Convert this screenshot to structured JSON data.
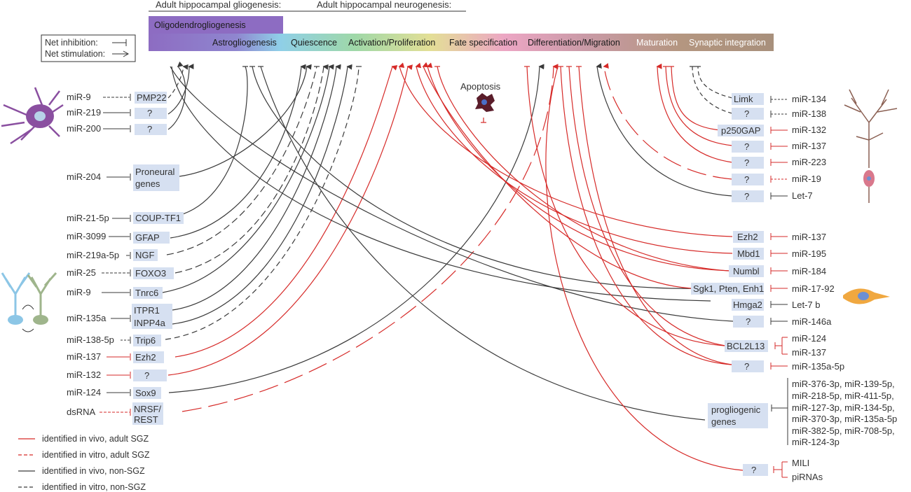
{
  "headers": {
    "gliogenesis": "Adult hippocampal gliogenesis:",
    "neurogenesis": "Adult hippocampal neurogenesis:"
  },
  "stages": {
    "oligodendrogliogenesis": "Oligodendrogliogenesis",
    "astrogliogenesis": "Astrogliogenesis",
    "quiescence": "Quiescence",
    "activation": "Activation/Proliferation",
    "fate": "Fate specification",
    "differentiation": "Differentiation/Migration",
    "maturation": "Maturation",
    "synaptic": "Synaptic integration"
  },
  "net_legend": {
    "inhibition": "Net inhibition:",
    "stimulation": "Net stimulation:"
  },
  "apoptosis": "Apoptosis",
  "left_rows": [
    {
      "mirna": "miR-9",
      "target": "PMP22"
    },
    {
      "mirna": "miR-219",
      "target": "?"
    },
    {
      "mirna": "miR-200",
      "target": "?"
    },
    {
      "mirna": "miR-204",
      "target": "Proneural",
      "target2": "genes"
    },
    {
      "mirna": "miR-21-5p",
      "target": "COUP-TF1"
    },
    {
      "mirna": "miR-3099",
      "target": "GFAP"
    },
    {
      "mirna": "miR-219a-5p",
      "target": "NGF"
    },
    {
      "mirna": "miR-25",
      "target": "FOXO3"
    },
    {
      "mirna": "miR-9",
      "target": "Tnrc6"
    },
    {
      "mirna": "miR-135a",
      "target": "ITPR1",
      "target2": "INPP4a"
    },
    {
      "mirna": "miR-138-5p",
      "target": "Trip6"
    },
    {
      "mirna": "miR-137",
      "target": "Ezh2"
    },
    {
      "mirna": "miR-132",
      "target": "?"
    },
    {
      "mirna": "miR-124",
      "target": "Sox9"
    },
    {
      "mirna": "dsRNA",
      "target": "NRSF/",
      "target2": "REST"
    }
  ],
  "right_rows": [
    {
      "target": "Limk",
      "mirna": "miR-134"
    },
    {
      "target": "?",
      "mirna": "miR-138"
    },
    {
      "target": "p250GAP",
      "mirna": "miR-132"
    },
    {
      "target": "?",
      "mirna": "miR-137"
    },
    {
      "target": "?",
      "mirna": "miR-223"
    },
    {
      "target": "?",
      "mirna": "miR-19"
    },
    {
      "target": "?",
      "mirna": "Let-7"
    },
    {
      "target": "Ezh2",
      "mirna": "miR-137"
    },
    {
      "target": "Mbd1",
      "mirna": "miR-195"
    },
    {
      "target": "Numbl",
      "mirna": "miR-184"
    },
    {
      "target": "Sgk1, Pten, Enh1",
      "mirna": "miR-17-92"
    },
    {
      "target": "Hmga2",
      "mirna": "Let-7 b"
    },
    {
      "target": "?",
      "mirna": "miR-146a"
    },
    {
      "target": "BCL2L13",
      "mirna": "miR-124",
      "mirna2": "miR-137"
    },
    {
      "target": "?",
      "mirna": "miR-135a-5p"
    },
    {
      "target": "progliogenic",
      "target2": "genes",
      "mirnas": [
        "miR-376-3p, miR-139-5p,",
        "miR-218-5p, miR-411-5p,",
        "miR-127-3p, miR-134-5p,",
        "miR-370-3p, miR-135a-5p",
        "miR-382-5p, miR-708-5p,",
        "miR-124-3p"
      ]
    },
    {
      "target": "?",
      "mirna": "MILI",
      "mirna2": "piRNAs"
    }
  ],
  "legend": [
    {
      "label": "identified in vivo, adult SGZ",
      "color": "#d62a28",
      "dashed": false
    },
    {
      "label": "identified in vitro, adult SGZ",
      "color": "#d62a28",
      "dashed": true
    },
    {
      "label": "identified in vivo, non-SGZ",
      "color": "#3a3a3a",
      "dashed": false
    },
    {
      "label": "identified in vitro, non-SGZ",
      "color": "#3a3a3a",
      "dashed": true
    }
  ],
  "colors": {
    "red": "#d62a28",
    "dark": "#3a3a3a",
    "box": "#d6e0f1"
  }
}
